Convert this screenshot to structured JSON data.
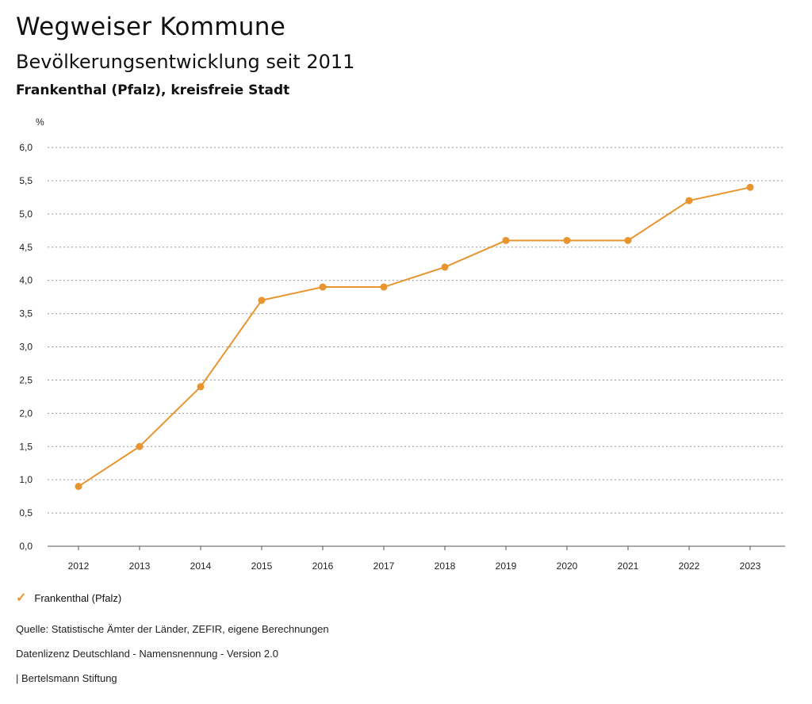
{
  "header": {
    "title": "Wegweiser Kommune",
    "subtitle": "Bevölkerungsentwicklung seit 2011",
    "region": "Frankenthal (Pfalz), kreisfreie Stadt"
  },
  "chart_data": {
    "type": "line",
    "ylabel": "%",
    "ylim": [
      0,
      6
    ],
    "yticks": [
      "0,0",
      "0,5",
      "1,0",
      "1,5",
      "2,0",
      "2,5",
      "3,0",
      "3,5",
      "4,0",
      "4,5",
      "5,0",
      "5,5",
      "6,0"
    ],
    "categories": [
      "2012",
      "2013",
      "2014",
      "2015",
      "2016",
      "2017",
      "2018",
      "2019",
      "2020",
      "2021",
      "2022",
      "2023"
    ],
    "series": [
      {
        "name": "Frankenthal (Pfalz)",
        "color": "#e8952f",
        "values": [
          0.9,
          1.5,
          2.4,
          3.7,
          3.9,
          3.9,
          4.2,
          4.6,
          4.6,
          4.6,
          5.2,
          5.4
        ]
      }
    ],
    "grid": true,
    "legend": "bottom-left"
  },
  "legend": {
    "label": "Frankenthal (Pfalz)",
    "icon": "check-icon"
  },
  "footer": {
    "source": "Quelle: Statistische Ämter der Länder, ZEFIR, eigene Berechnungen",
    "license": "Datenlizenz Deutschland - Namensnennung - Version 2.0",
    "publisher": "| Bertelsmann Stiftung"
  }
}
